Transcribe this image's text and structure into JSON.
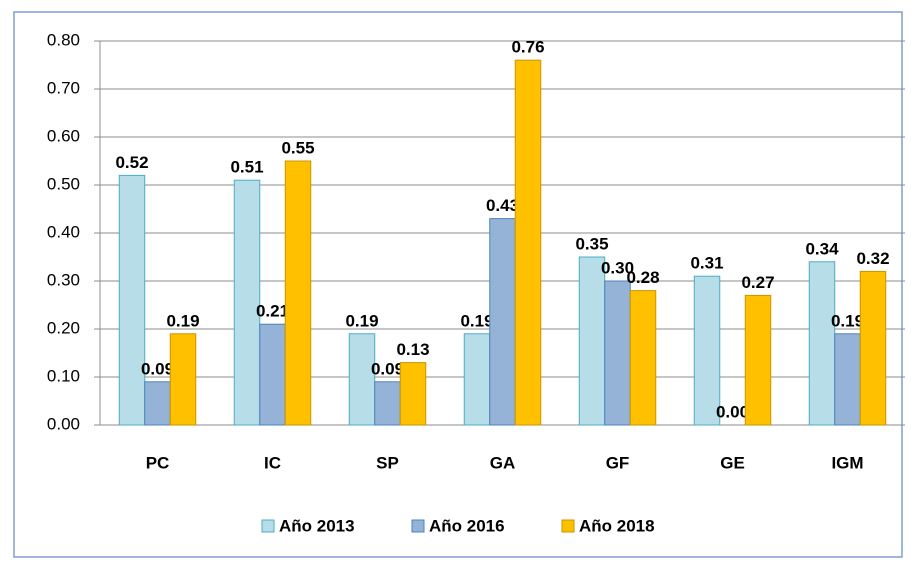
{
  "chart_data": {
    "type": "bar",
    "categories": [
      "PC",
      "IC",
      "SP",
      "GA",
      "GF",
      "GE",
      "IGM"
    ],
    "series": [
      {
        "name": "Año 2013",
        "color": "#b7dee8",
        "values": [
          0.52,
          0.51,
          0.19,
          0.19,
          0.35,
          0.31,
          0.34
        ],
        "value_labels": [
          "0.52",
          "0.51",
          "0.19",
          "0.19",
          "0.35",
          "0.31",
          "0.34"
        ]
      },
      {
        "name": "Año 2016",
        "color": "#95b3d7",
        "values": [
          0.09,
          0.21,
          0.09,
          0.43,
          0.3,
          0.0,
          0.19
        ],
        "value_labels": [
          "0.09",
          "0.21",
          "0.09",
          "0.43",
          "0.30",
          "0.00",
          "0.19"
        ]
      },
      {
        "name": "Año 2018",
        "color": "#ffc000",
        "values": [
          0.19,
          0.55,
          0.13,
          0.76,
          0.28,
          0.27,
          0.32
        ],
        "value_labels": [
          "0.19",
          "0.55",
          "0.13",
          "0.76",
          "0.28",
          "0.27",
          "0.32"
        ]
      }
    ],
    "ylim": [
      0,
      0.8
    ],
    "yticks": [
      {
        "value": 0,
        "label": "0.00"
      },
      {
        "value": 0.1,
        "label": "0.10"
      },
      {
        "value": 0.2,
        "label": "0.20"
      },
      {
        "value": 0.3,
        "label": "0.30"
      },
      {
        "value": 0.4,
        "label": "0.40"
      },
      {
        "value": 0.5,
        "label": "0.50"
      },
      {
        "value": 0.6,
        "label": "0.60"
      },
      {
        "value": 0.7,
        "label": "0.70"
      },
      {
        "value": 0.8,
        "label": "0.80"
      }
    ],
    "grid": true,
    "legend": "bottom"
  }
}
